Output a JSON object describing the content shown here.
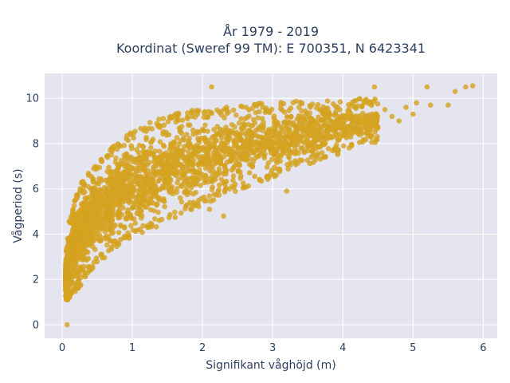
{
  "chart_data": {
    "type": "scatter",
    "title_line1": "År 1979 - 2019",
    "title_line2": "Koordinat (Sweref 99 TM): E 700351, N 6423341",
    "xlabel": "Signifikant våghöjd (m)",
    "ylabel": "Vågperiod (s)",
    "xlim": [
      -0.25,
      6.2
    ],
    "ylim": [
      -0.6,
      11.1
    ],
    "xticks": [
      0,
      1,
      2,
      3,
      4,
      5,
      6
    ],
    "yticks": [
      0,
      2,
      4,
      6,
      8,
      10
    ],
    "grid": true,
    "legend": "none",
    "colors": {
      "point": "#d4a320",
      "plot_bg": "#e5e5f0",
      "grid": "#ffffff",
      "text": "#2a3f5f"
    },
    "points_band": [
      {
        "x": 0.05,
        "y_low": 1.2,
        "y_high": 2.9
      },
      {
        "x": 0.1,
        "y_low": 1.2,
        "y_high": 4.5
      },
      {
        "x": 0.2,
        "y_low": 1.6,
        "y_high": 5.7
      },
      {
        "x": 0.3,
        "y_low": 2.0,
        "y_high": 6.3
      },
      {
        "x": 0.4,
        "y_low": 2.5,
        "y_high": 6.7
      },
      {
        "x": 0.5,
        "y_low": 2.8,
        "y_high": 7.1
      },
      {
        "x": 0.7,
        "y_low": 3.3,
        "y_high": 7.7
      },
      {
        "x": 0.9,
        "y_low": 3.8,
        "y_high": 8.2
      },
      {
        "x": 1.1,
        "y_low": 4.1,
        "y_high": 8.7
      },
      {
        "x": 1.4,
        "y_low": 4.5,
        "y_high": 9.0
      },
      {
        "x": 1.7,
        "y_low": 5.0,
        "y_high": 9.3
      },
      {
        "x": 2.0,
        "y_low": 5.4,
        "y_high": 9.4
      },
      {
        "x": 2.5,
        "y_low": 6.0,
        "y_high": 9.6
      },
      {
        "x": 3.0,
        "y_low": 6.6,
        "y_high": 9.7
      },
      {
        "x": 3.5,
        "y_low": 7.2,
        "y_high": 9.8
      },
      {
        "x": 4.0,
        "y_low": 7.7,
        "y_high": 9.9
      },
      {
        "x": 4.5,
        "y_low": 8.2,
        "y_high": 9.9
      }
    ],
    "outliers": [
      {
        "x": 0.07,
        "y": 0.0
      },
      {
        "x": 2.13,
        "y": 10.5
      },
      {
        "x": 4.45,
        "y": 10.5
      },
      {
        "x": 4.6,
        "y": 9.5
      },
      {
        "x": 4.7,
        "y": 9.2
      },
      {
        "x": 4.8,
        "y": 9.0
      },
      {
        "x": 4.9,
        "y": 9.6
      },
      {
        "x": 5.0,
        "y": 9.3
      },
      {
        "x": 5.05,
        "y": 9.8
      },
      {
        "x": 5.2,
        "y": 10.5
      },
      {
        "x": 5.25,
        "y": 9.7
      },
      {
        "x": 5.5,
        "y": 9.7
      },
      {
        "x": 5.6,
        "y": 10.3
      },
      {
        "x": 5.75,
        "y": 10.5
      },
      {
        "x": 5.85,
        "y": 10.55
      },
      {
        "x": 3.2,
        "y": 5.9
      },
      {
        "x": 2.3,
        "y": 4.8
      },
      {
        "x": 2.1,
        "y": 5.1
      }
    ]
  }
}
